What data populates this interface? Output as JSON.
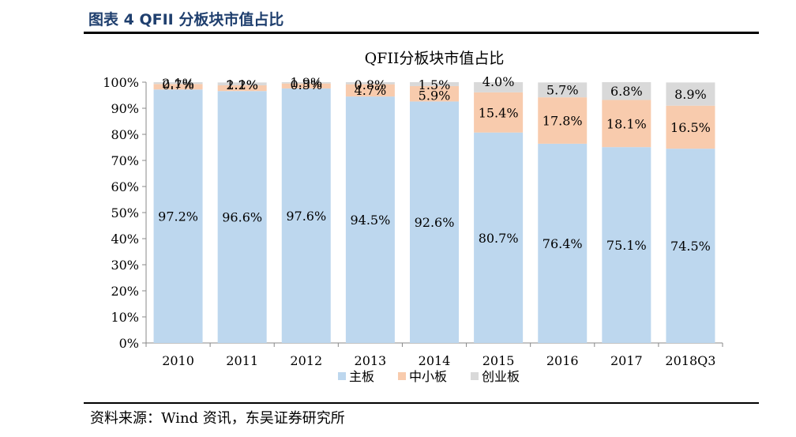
{
  "figure": {
    "title": "图表 4 QFII 分板块市值占比",
    "source": "资料来源：Wind 资讯，东吴证券研究所"
  },
  "chart_data": {
    "type": "bar",
    "stacked": true,
    "title": "QFII分板块市值占比",
    "categories": [
      "2010",
      "2011",
      "2012",
      "2013",
      "2014",
      "2015",
      "2016",
      "2017",
      "2018Q3"
    ],
    "series": [
      {
        "name": "主板",
        "color": "#bdd7ee",
        "values": [
          97.2,
          96.6,
          97.6,
          94.5,
          92.6,
          80.7,
          76.4,
          75.1,
          74.5
        ]
      },
      {
        "name": "中小板",
        "color": "#f8cbad",
        "values": [
          2.1,
          2.2,
          1.9,
          4.7,
          5.9,
          15.4,
          17.8,
          18.1,
          16.5
        ]
      },
      {
        "name": "创业板",
        "color": "#d9d9d9",
        "values": [
          0.7,
          1.1,
          0.5,
          0.8,
          1.5,
          4.0,
          5.7,
          6.8,
          8.9
        ]
      }
    ],
    "ylim": [
      0,
      100
    ],
    "yticks": [
      "0%",
      "10%",
      "20%",
      "30%",
      "40%",
      "50%",
      "60%",
      "70%",
      "80%",
      "90%",
      "100%"
    ],
    "value_suffix": "%",
    "legend_position": "bottom",
    "grid": false
  }
}
